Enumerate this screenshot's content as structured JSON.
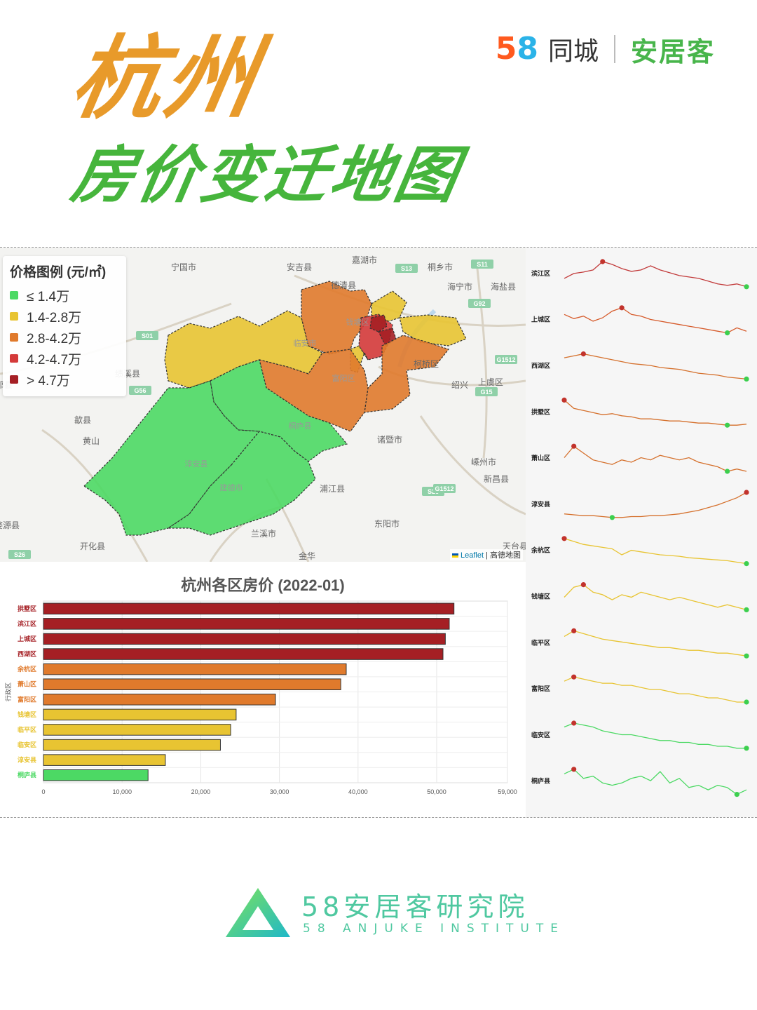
{
  "header": {
    "title_line1": "杭州",
    "title_line2": "房价变迁地图",
    "logo_58": [
      "5",
      "8"
    ],
    "logo_tongcheng": "同城",
    "logo_anjuke": "安居客"
  },
  "map": {
    "legend_title": "价格图例 (元/㎡)",
    "legend_items": [
      {
        "label": "≤ 1.4万",
        "color": "#4cd964"
      },
      {
        "label": "1.4-2.8万",
        "color": "#e8c432"
      },
      {
        "label": "2.8-4.2万",
        "color": "#e07a2c"
      },
      {
        "label": "4.2-4.7万",
        "color": "#d43a3a"
      },
      {
        "label": "> 4.7万",
        "color": "#a51f24"
      }
    ],
    "place_labels": [
      "宁国市",
      "安吉县",
      "嘉湖市",
      "桐乡市",
      "海宁市",
      "海盐县",
      "德清县",
      "绩溪县",
      "歙县",
      "黄山",
      "柯桥区",
      "绍兴",
      "上虞区",
      "诸暨市",
      "嵊州市",
      "新昌县",
      "浦江县",
      "东阳市",
      "兰溪市",
      "金华",
      "开化县",
      "天台县",
      "祁县",
      "婺源县"
    ],
    "road_shields": [
      "S13",
      "S11",
      "G92",
      "S01",
      "G56",
      "S26",
      "G1512",
      "S26",
      "G15",
      "G1512"
    ],
    "district_labels": [
      "临安市",
      "富阳区",
      "桐庐县",
      "淳安县",
      "建德市",
      "钱塘区"
    ],
    "attribution_leaflet": "Leaflet",
    "attribution_sep": " | ",
    "attribution_amap": "高德地图"
  },
  "chart_data": [
    {
      "type": "bar",
      "title": "杭州各区房价 (2022-01)",
      "ylabel": "行政区",
      "xlabel": "",
      "orientation": "horizontal",
      "categories": [
        "拱墅区",
        "滨江区",
        "上城区",
        "西湖区",
        "余杭区",
        "萧山区",
        "富阳区",
        "钱塘区",
        "临平区",
        "临安区",
        "淳安县",
        "桐庐县"
      ],
      "values": [
        52200,
        51600,
        51100,
        50800,
        38500,
        37800,
        29500,
        24500,
        23800,
        22500,
        15500,
        13300
      ],
      "bar_colors": [
        "#a51f24",
        "#a51f24",
        "#a51f24",
        "#a51f24",
        "#e07a2c",
        "#e07a2c",
        "#e07a2c",
        "#e8c432",
        "#e8c432",
        "#e8c432",
        "#e8c432",
        "#4cd964"
      ],
      "xlim": [
        0,
        59000
      ],
      "xticks": [
        0,
        10000,
        20000,
        30000,
        40000,
        50000,
        59000
      ],
      "xtick_labels": [
        "0",
        "10,000",
        "20,000",
        "30,000",
        "40,000",
        "50,000",
        "59,000"
      ],
      "grid": true,
      "legend": "none"
    },
    {
      "type": "line",
      "title": "",
      "description_of_values": "relative price trend per district (unitless sparklines, y axis not printed)",
      "rows": [
        {
          "name": "滨江区",
          "color": "#c23a3a",
          "values": [
            48,
            55,
            57,
            60,
            72,
            68,
            62,
            58,
            60,
            66,
            60,
            56,
            52,
            50,
            48,
            44,
            40,
            38,
            40,
            36
          ],
          "max_index": 4,
          "min_index": 19
        },
        {
          "name": "上城区",
          "color": "#d65a2a",
          "values": [
            60,
            55,
            58,
            52,
            56,
            64,
            68,
            60,
            58,
            54,
            52,
            50,
            48,
            46,
            44,
            42,
            40,
            38,
            44,
            40
          ],
          "max_index": 6,
          "min_index": 17
        },
        {
          "name": "西湖区",
          "color": "#d5702c",
          "values": [
            62,
            64,
            66,
            64,
            62,
            60,
            58,
            56,
            55,
            54,
            52,
            51,
            50,
            48,
            46,
            45,
            44,
            42,
            41,
            40
          ],
          "max_index": 2,
          "min_index": 19
        },
        {
          "name": "拱墅区",
          "color": "#d5702c",
          "values": [
            70,
            62,
            60,
            58,
            56,
            57,
            55,
            54,
            52,
            52,
            51,
            50,
            50,
            49,
            48,
            48,
            47,
            46,
            46,
            47
          ],
          "max_index": 0,
          "min_index": 17
        },
        {
          "name": "萧山区",
          "color": "#d5702c",
          "values": [
            56,
            66,
            60,
            54,
            52,
            50,
            54,
            52,
            56,
            54,
            58,
            56,
            54,
            56,
            52,
            50,
            48,
            44,
            46,
            44
          ],
          "max_index": 1,
          "min_index": 17
        },
        {
          "name": "淳安县",
          "color": "#d5702c",
          "values": [
            48,
            47,
            46,
            46,
            45,
            44,
            44,
            45,
            45,
            46,
            46,
            47,
            48,
            50,
            52,
            55,
            58,
            62,
            66,
            72
          ],
          "max_index": 19,
          "min_index": 5
        },
        {
          "name": "余杭区",
          "color": "#e8c432",
          "values": [
            72,
            68,
            64,
            62,
            60,
            58,
            50,
            56,
            54,
            52,
            50,
            49,
            48,
            46,
            45,
            44,
            43,
            42,
            40,
            38
          ],
          "max_index": 0,
          "min_index": 19
        },
        {
          "name": "钱塘区",
          "color": "#e8c432",
          "values": [
            58,
            66,
            68,
            62,
            60,
            56,
            60,
            58,
            62,
            60,
            58,
            56,
            58,
            56,
            54,
            52,
            50,
            52,
            50,
            48
          ],
          "max_index": 2,
          "min_index": 19
        },
        {
          "name": "临平区",
          "color": "#e8c432",
          "values": [
            62,
            66,
            64,
            62,
            60,
            59,
            58,
            57,
            56,
            55,
            54,
            54,
            53,
            52,
            52,
            51,
            50,
            50,
            49,
            48
          ],
          "max_index": 1,
          "min_index": 19
        },
        {
          "name": "富阳区",
          "color": "#e8c432",
          "values": [
            56,
            58,
            57,
            56,
            55,
            55,
            54,
            54,
            53,
            52,
            52,
            51,
            50,
            50,
            49,
            48,
            48,
            47,
            46,
            46
          ],
          "max_index": 1,
          "min_index": 19
        },
        {
          "name": "临安区",
          "color": "#4cd964",
          "values": [
            62,
            66,
            64,
            62,
            58,
            56,
            54,
            54,
            52,
            50,
            48,
            48,
            46,
            46,
            44,
            44,
            42,
            42,
            40,
            40
          ],
          "max_index": 1,
          "min_index": 19
        },
        {
          "name": "桐庐县",
          "color": "#4cd964",
          "values": [
            60,
            64,
            56,
            58,
            52,
            50,
            52,
            56,
            58,
            54,
            62,
            52,
            56,
            48,
            50,
            46,
            50,
            48,
            42,
            46
          ],
          "max_index": 1,
          "min_index": 18
        }
      ]
    }
  ],
  "footer": {
    "org_cn": "58安居客研究院",
    "org_en": "58 ANJUKE INSTITUTE"
  }
}
